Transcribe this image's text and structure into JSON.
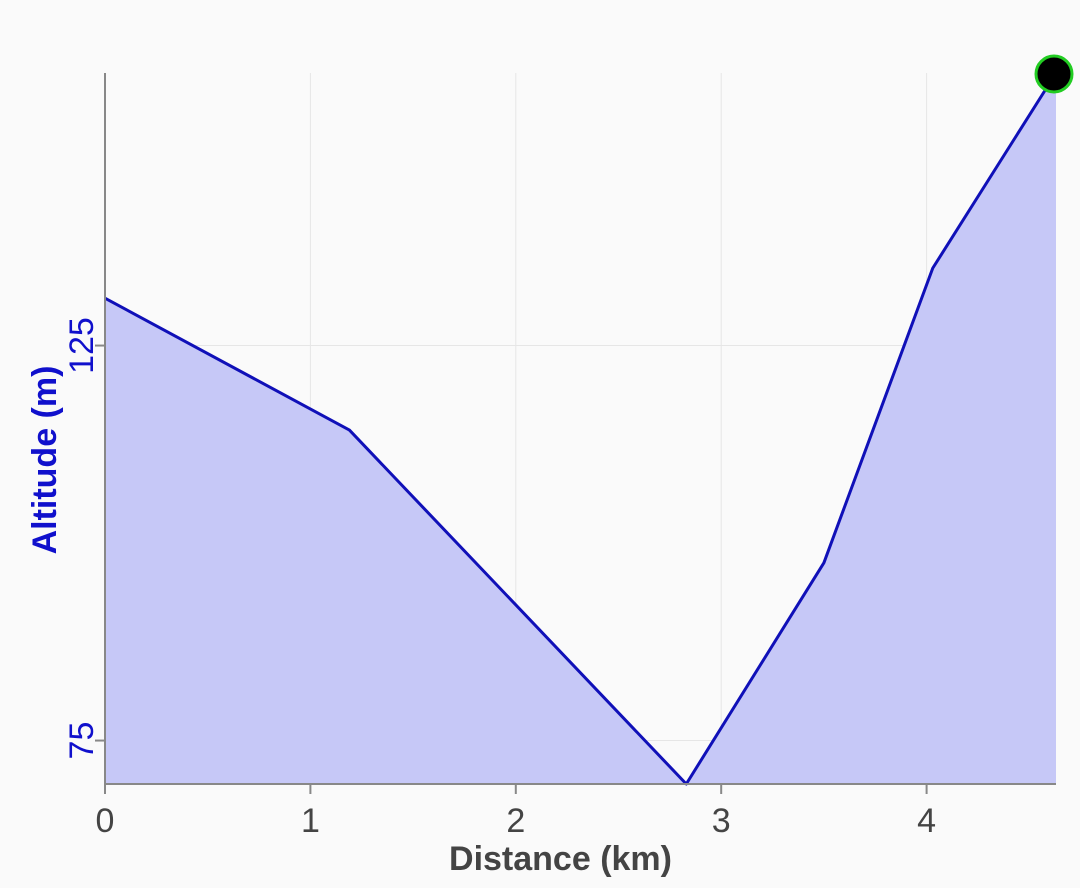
{
  "chart_data": {
    "type": "area",
    "title": "",
    "xlabel": "Distance (km)",
    "ylabel": "Altitude (m)",
    "xlim": [
      0,
      4.63
    ],
    "ylim": [
      69.5,
      159.5
    ],
    "x_ticks": [
      "0",
      "1",
      "2",
      "3",
      "4"
    ],
    "y_ticks": [
      "75",
      "125"
    ],
    "grid": true,
    "series": [
      {
        "x": [
          0,
          1.19,
          2.83,
          3.5,
          4.03,
          4.63
        ],
        "y": [
          131,
          114.3,
          69.5,
          97.5,
          134.8,
          159.5
        ]
      }
    ],
    "marker": {
      "x": 4.63,
      "y": 159.5
    },
    "colors": {
      "line": "#1010b8",
      "fill": "#c6c8f7",
      "axis_text": "#444444",
      "y_text": "#1010cc",
      "grid": "#e6e6e6",
      "marker_fill": "#000000",
      "marker_stroke": "#22cc22"
    }
  }
}
